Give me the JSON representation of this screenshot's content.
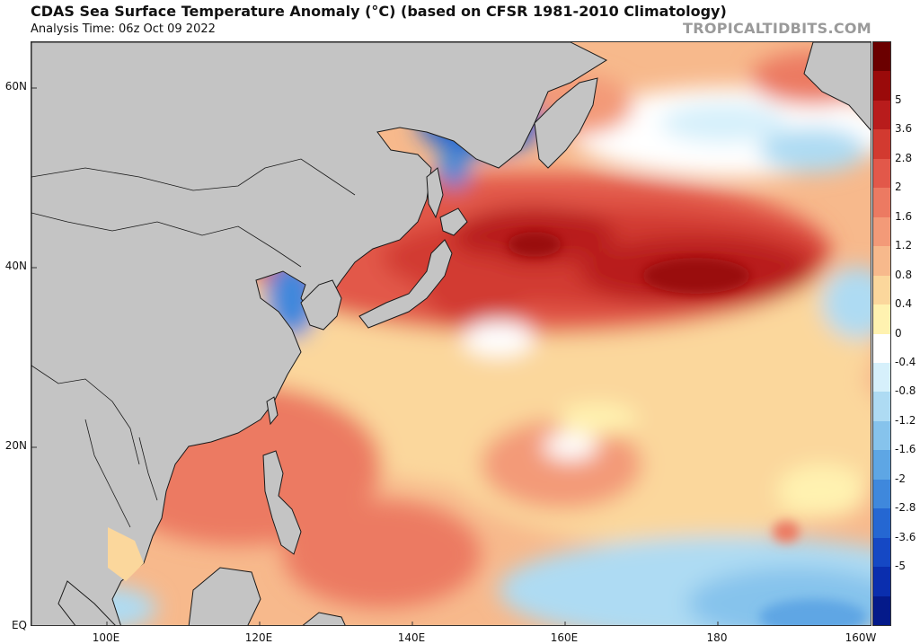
{
  "header": {
    "title": "CDAS Sea Surface Temperature Anomaly (°C) (based on CFSR 1981-2010 Climatology)",
    "subtitle": "Analysis Time: 06z Oct 09 2022",
    "brand": "TROPICALTIDBITS.COM"
  },
  "axes": {
    "lat_labels": [
      "60N",
      "40N",
      "20N",
      "EQ"
    ],
    "lon_labels": [
      "100E",
      "120E",
      "140E",
      "160E",
      "180",
      "160W"
    ]
  },
  "colorbar": {
    "labels": [
      "5",
      "3.6",
      "2.8",
      "2",
      "1.6",
      "1.2",
      "0.8",
      "0.4",
      "0",
      "-0.4",
      "-0.8",
      "-1.2",
      "-1.6",
      "-2",
      "-2.8",
      "-3.6",
      "-5"
    ],
    "colors": [
      "#6b0000",
      "#9a0a0a",
      "#b81c1c",
      "#d23a30",
      "#e2584a",
      "#ec7a62",
      "#f39a78",
      "#f7b98c",
      "#fbd79c",
      "#fff2b0",
      "#ffffff",
      "#d6f0fb",
      "#aedbf3",
      "#86c3ec",
      "#5ea6e4",
      "#3f88dc",
      "#2567d2",
      "#1548c4",
      "#0a2eae",
      "#041a8a"
    ]
  },
  "map_colors": {
    "land": "#c4c4c4",
    "coast": "#1a1a1a"
  }
}
